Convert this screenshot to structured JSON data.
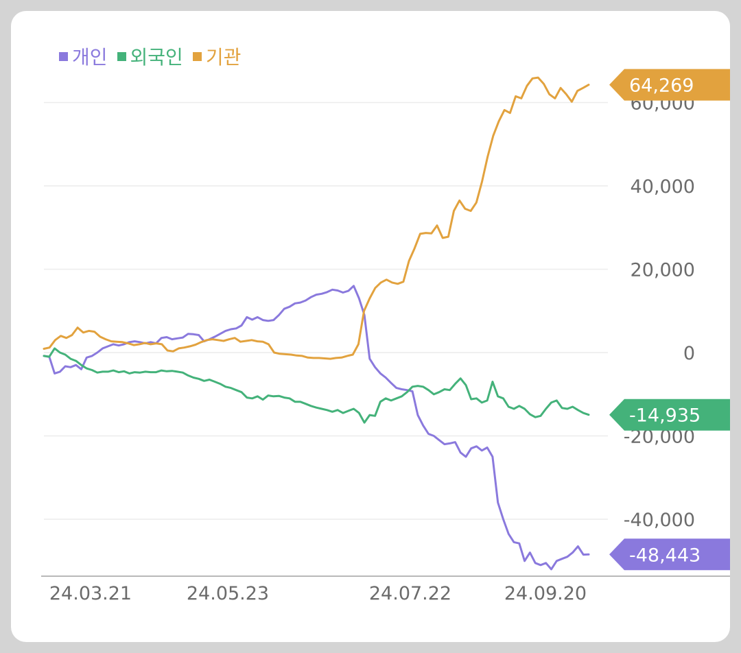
{
  "chart_data": {
    "type": "line",
    "title": "",
    "xlabel": "",
    "ylabel": "",
    "x_ticks": [
      "24.03.21",
      "24.05.23",
      "24.07.22",
      "24.09.20"
    ],
    "y_ticks": [
      60000,
      40000,
      20000,
      0,
      -20000,
      -40000
    ],
    "ylim": [
      -55000,
      70000
    ],
    "grid": true,
    "legend_position": "top-left",
    "series": [
      {
        "name": "개인",
        "color": "#8a79dd",
        "last_label": "-48,443",
        "values": [
          -800,
          -1000,
          -5000,
          -4600,
          -3300,
          -3500,
          -3000,
          -4000,
          -1200,
          -800,
          0,
          1000,
          1500,
          2000,
          1700,
          2000,
          2500,
          2700,
          2500,
          2200,
          2500,
          2200,
          3500,
          3700,
          3200,
          3400,
          3600,
          4500,
          4400,
          4200,
          2700,
          3200,
          3800,
          4500,
          5200,
          5600,
          5800,
          6500,
          8500,
          7900,
          8500,
          7800,
          7600,
          7800,
          9000,
          10500,
          11000,
          11800,
          12000,
          12500,
          13300,
          13900,
          14100,
          14500,
          15100,
          14900,
          14400,
          14800,
          16000,
          13000,
          9000,
          -1500,
          -3500,
          -5000,
          -6000,
          -7300,
          -8500,
          -8800,
          -9000,
          -9300,
          -15000,
          -17500,
          -19500,
          -20000,
          -21000,
          -22000,
          -21800,
          -21500,
          -24000,
          -25000,
          -23000,
          -22500,
          -23500,
          -22800,
          -25000,
          -36000,
          -40000,
          -43500,
          -45500,
          -45800,
          -50000,
          -48000,
          -50500,
          -51000,
          -50500,
          -52000,
          -50000,
          -49500,
          -49000,
          -48000,
          -46500,
          -48500,
          -48443
        ]
      },
      {
        "name": "외국인",
        "color": "#44b27a",
        "last_label": "-14,935",
        "values": [
          -800,
          -1000,
          1000,
          0,
          -500,
          -1500,
          -2000,
          -3000,
          -3800,
          -4200,
          -4800,
          -4600,
          -4600,
          -4300,
          -4700,
          -4500,
          -5000,
          -4700,
          -4800,
          -4600,
          -4700,
          -4700,
          -4300,
          -4500,
          -4400,
          -4600,
          -4800,
          -5500,
          -6000,
          -6300,
          -6800,
          -6500,
          -7000,
          -7500,
          -8200,
          -8500,
          -9000,
          -9500,
          -10800,
          -11000,
          -10500,
          -11300,
          -10300,
          -10500,
          -10400,
          -10800,
          -11000,
          -11800,
          -11800,
          -12300,
          -12800,
          -13200,
          -13500,
          -13800,
          -14200,
          -13800,
          -14500,
          -14000,
          -13500,
          -14500,
          -16800,
          -15000,
          -15200,
          -11800,
          -11000,
          -11500,
          -11000,
          -10500,
          -9500,
          -8200,
          -8000,
          -8200,
          -9000,
          -10000,
          -9500,
          -8800,
          -9000,
          -7500,
          -6200,
          -7800,
          -11200,
          -11000,
          -12000,
          -11500,
          -7000,
          -10500,
          -11000,
          -13000,
          -13500,
          -12800,
          -13500,
          -14800,
          -15500,
          -15200,
          -13500,
          -12000,
          -11500,
          -13300,
          -13500,
          -13000,
          -13800,
          -14500,
          -14935
        ]
      },
      {
        "name": "기관",
        "color": "#e2a23e",
        "last_label": "64,269",
        "values": [
          900,
          1200,
          3000,
          4000,
          3500,
          4200,
          6000,
          4800,
          5200,
          5000,
          3800,
          3200,
          2700,
          2600,
          2500,
          2200,
          1800,
          2000,
          2300,
          2000,
          2200,
          2000,
          500,
          300,
          1000,
          1200,
          1500,
          1900,
          2500,
          3000,
          3200,
          3000,
          2800,
          3200,
          3500,
          2600,
          2800,
          3000,
          2700,
          2600,
          2000,
          0,
          -300,
          -400,
          -500,
          -700,
          -800,
          -1200,
          -1300,
          -1300,
          -1400,
          -1500,
          -1300,
          -1200,
          -800,
          -500,
          2000,
          10000,
          13000,
          15500,
          16800,
          17500,
          16800,
          16500,
          17000,
          22000,
          25000,
          28500,
          28700,
          28600,
          30500,
          27500,
          27800,
          34000,
          36500,
          34500,
          34000,
          36000,
          41000,
          47000,
          52000,
          55500,
          58200,
          57500,
          61500,
          61000,
          64000,
          65800,
          66000,
          64500,
          62000,
          61000,
          63500,
          62000,
          60200,
          62800,
          63500,
          64269
        ]
      }
    ]
  }
}
